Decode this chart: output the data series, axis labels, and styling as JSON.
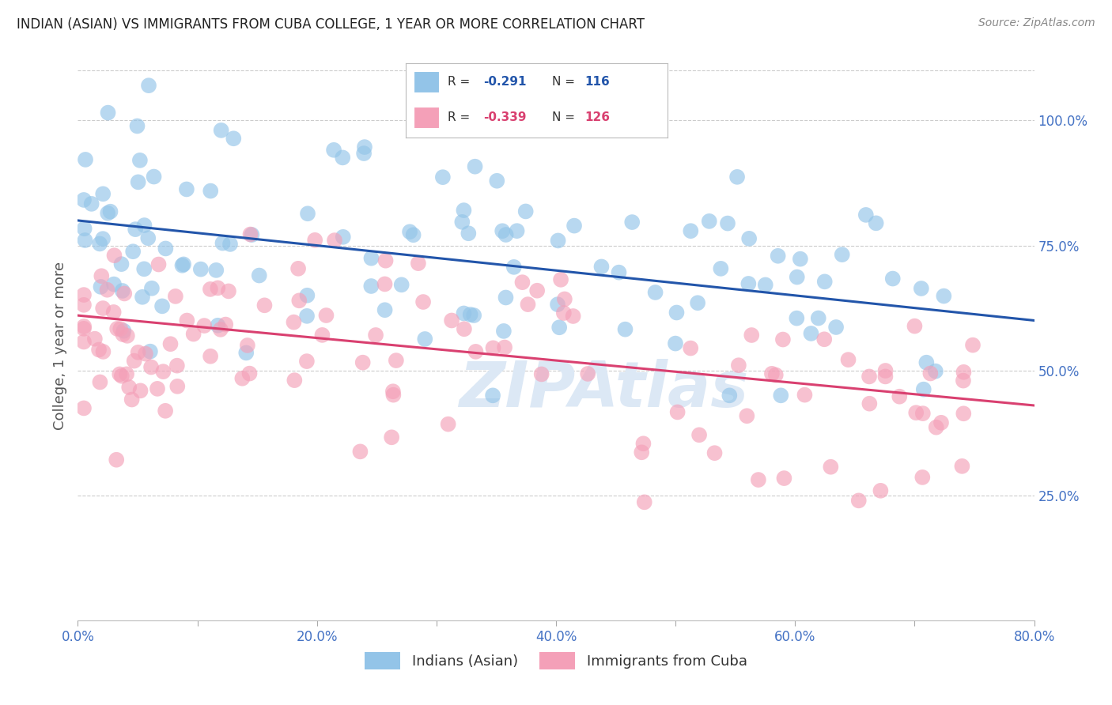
{
  "title": "INDIAN (ASIAN) VS IMMIGRANTS FROM CUBA COLLEGE, 1 YEAR OR MORE CORRELATION CHART",
  "source_text": "Source: ZipAtlas.com",
  "ylabel": "College, 1 year or more",
  "xlabel_ticks": [
    "0.0%",
    "",
    "20.0%",
    "",
    "40.0%",
    "",
    "60.0%",
    "",
    "80.0%"
  ],
  "xlabel_vals": [
    0.0,
    10.0,
    20.0,
    30.0,
    40.0,
    50.0,
    60.0,
    70.0,
    80.0
  ],
  "ylabel_ticks": [
    "25.0%",
    "50.0%",
    "75.0%",
    "100.0%"
  ],
  "ylabel_vals": [
    25.0,
    50.0,
    75.0,
    100.0
  ],
  "xlim": [
    0.0,
    80.0
  ],
  "ylim": [
    0.0,
    110.0
  ],
  "series1": {
    "label": "Indians (Asian)",
    "R": -0.291,
    "N": 116,
    "color": "#93c4e8",
    "trendline_color": "#2255aa",
    "trend_x0": 0.0,
    "trend_x1": 80.0,
    "trend_y0": 80.0,
    "trend_y1": 60.0
  },
  "series2": {
    "label": "Immigrants from Cuba",
    "R": -0.339,
    "N": 126,
    "color": "#f4a0b8",
    "trendline_color": "#d94070",
    "trend_x0": 0.0,
    "trend_x1": 80.0,
    "trend_y0": 61.0,
    "trend_y1": 43.0
  },
  "background_color": "#ffffff",
  "grid_color": "#cccccc",
  "title_color": "#222222",
  "axis_label_color": "#555555",
  "tick_label_color": "#4472c4",
  "source_color": "#888888",
  "watermark_text": "ZIPAtlas",
  "watermark_color": "#dce8f5",
  "legend_r1_color": "#2255aa",
  "legend_r2_color": "#d94070",
  "legend_n_color": "#2255aa"
}
